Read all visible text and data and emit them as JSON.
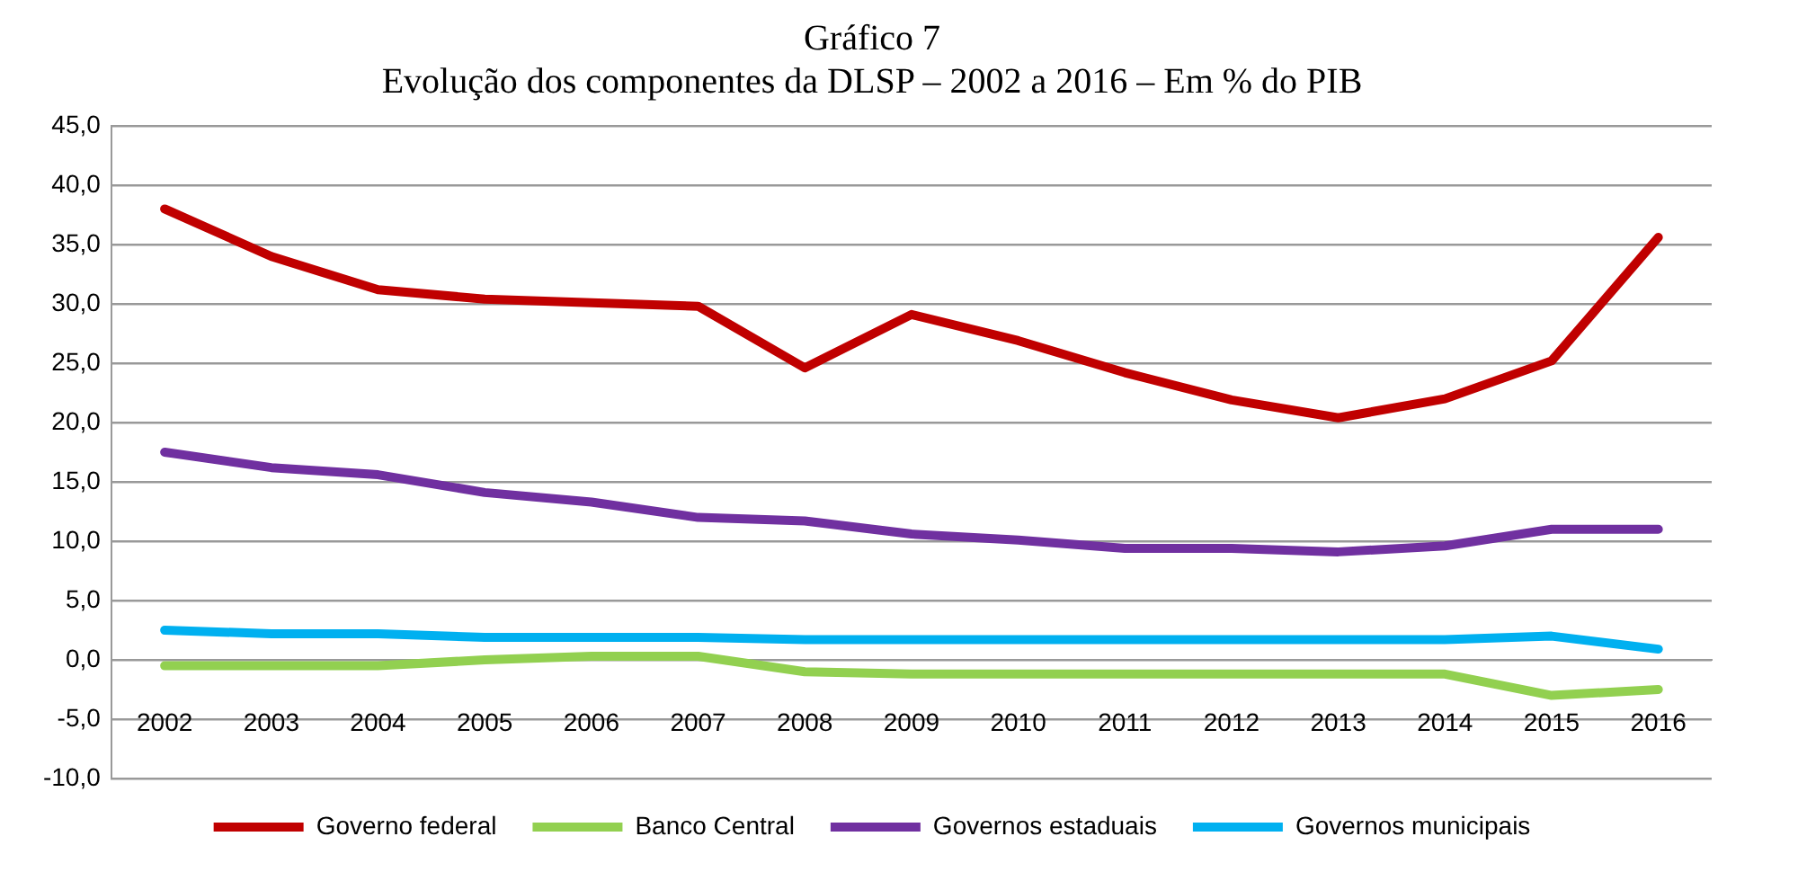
{
  "chart_data": {
    "type": "line",
    "title": "Gráfico 7",
    "subtitle": "Evolução dos componentes da DLSP – 2002 a 2016 – Em % do PIB",
    "categories": [
      "2002",
      "2003",
      "2004",
      "2005",
      "2006",
      "2007",
      "2008",
      "2009",
      "2010",
      "2011",
      "2012",
      "2013",
      "2014",
      "2015",
      "2016"
    ],
    "series": [
      {
        "name": "Governo federal",
        "color": "#c00000",
        "values": [
          38.0,
          34.0,
          31.2,
          30.4,
          30.1,
          29.8,
          24.6,
          29.1,
          26.9,
          24.2,
          21.9,
          20.4,
          22.0,
          25.2,
          35.6
        ]
      },
      {
        "name": "Banco Central",
        "color": "#92d050",
        "values": [
          -0.5,
          -0.5,
          -0.5,
          0.0,
          0.3,
          0.3,
          -1.0,
          -1.2,
          -1.2,
          -1.2,
          -1.2,
          -1.2,
          -1.2,
          -3.0,
          -2.5
        ]
      },
      {
        "name": "Governos estaduais",
        "color": "#7030a0",
        "values": [
          17.5,
          16.2,
          15.6,
          14.1,
          13.3,
          12.0,
          11.7,
          10.6,
          10.1,
          9.4,
          9.4,
          9.1,
          9.6,
          11.0,
          11.0
        ]
      },
      {
        "name": "Governos municipais",
        "color": "#00b0f0",
        "values": [
          2.5,
          2.2,
          2.2,
          1.9,
          1.9,
          1.9,
          1.7,
          1.7,
          1.7,
          1.7,
          1.7,
          1.7,
          1.7,
          2.0,
          0.9
        ]
      }
    ],
    "ylim": [
      -10,
      45
    ],
    "yticks": [
      {
        "value": -10,
        "label": "-10,0"
      },
      {
        "value": -5,
        "label": "-5,0"
      },
      {
        "value": 0,
        "label": "0,0"
      },
      {
        "value": 5,
        "label": "5,0"
      },
      {
        "value": 10,
        "label": "10,0"
      },
      {
        "value": 15,
        "label": "15,0"
      },
      {
        "value": 20,
        "label": "20,0"
      },
      {
        "value": 25,
        "label": "25,0"
      },
      {
        "value": 30,
        "label": "30,0"
      },
      {
        "value": 35,
        "label": "35,0"
      },
      {
        "value": 40,
        "label": "40,0"
      },
      {
        "value": 45,
        "label": "45,0"
      }
    ],
    "grid": "y",
    "legend": "bottom",
    "marker": "none",
    "line_style": "solid"
  }
}
